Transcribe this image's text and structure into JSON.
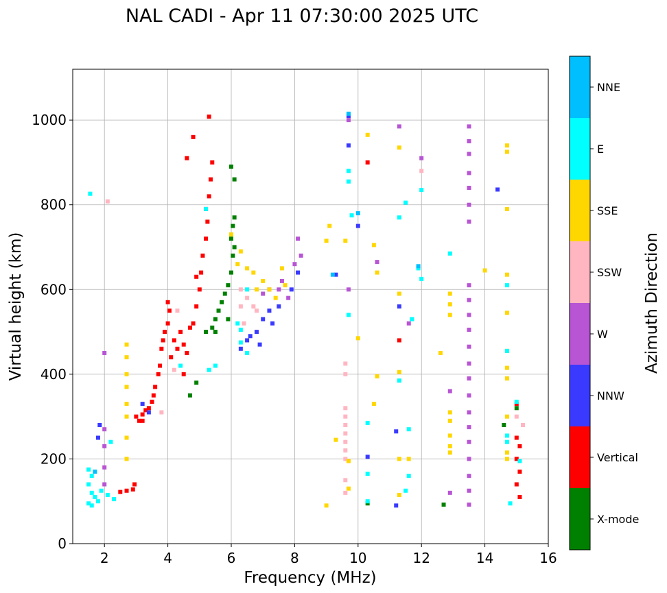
{
  "chart_data": {
    "type": "scatter",
    "title": "NAL CADI - Apr 11 07:30:00 2025 UTC",
    "xlabel": "Frequency (MHz)",
    "ylabel": "Virtual height (km)",
    "xlim": [
      1,
      16
    ],
    "ylim": [
      0,
      1120
    ],
    "xticks": [
      2,
      4,
      6,
      8,
      10,
      12,
      14,
      16
    ],
    "yticks": [
      0,
      200,
      400,
      600,
      800,
      1000
    ],
    "grid": true,
    "colorbar": {
      "label": "Azimuth Direction",
      "categories": [
        {
          "name": "X-mode",
          "color": "#008000"
        },
        {
          "name": "Vertical",
          "color": "#ff0000"
        },
        {
          "name": "NNW",
          "color": "#3a3aff"
        },
        {
          "name": "W",
          "color": "#b855d4"
        },
        {
          "name": "SSW",
          "color": "#ffb6c1"
        },
        {
          "name": "SSE",
          "color": "#ffd700"
        },
        {
          "name": "E",
          "color": "#00ffff"
        },
        {
          "name": "NNE",
          "color": "#00bfff"
        }
      ]
    },
    "clusters": [
      {
        "dir": "Vertical",
        "pts": [
          [
            2.9,
            128
          ],
          [
            2.95,
            140
          ],
          [
            3.0,
            300
          ],
          [
            3.1,
            290
          ],
          [
            3.2,
            305
          ],
          [
            3.3,
            315
          ],
          [
            3.4,
            320
          ],
          [
            3.5,
            335
          ],
          [
            3.55,
            350
          ],
          [
            3.6,
            370
          ],
          [
            3.7,
            400
          ],
          [
            3.75,
            420
          ],
          [
            3.8,
            460
          ],
          [
            3.85,
            480
          ],
          [
            3.9,
            500
          ],
          [
            4.0,
            520
          ],
          [
            4.05,
            550
          ],
          [
            4.0,
            570
          ],
          [
            4.2,
            480
          ],
          [
            4.3,
            460
          ],
          [
            4.4,
            500
          ],
          [
            4.5,
            470
          ],
          [
            4.6,
            450
          ],
          [
            4.7,
            510
          ],
          [
            4.8,
            520
          ],
          [
            4.9,
            560
          ],
          [
            5.0,
            600
          ],
          [
            5.05,
            640
          ],
          [
            5.1,
            680
          ],
          [
            5.2,
            720
          ],
          [
            5.25,
            760
          ],
          [
            5.3,
            820
          ],
          [
            5.35,
            860
          ],
          [
            5.4,
            900
          ],
          [
            4.6,
            910
          ],
          [
            4.8,
            960
          ],
          [
            5.3,
            1008
          ],
          [
            2.5,
            122
          ],
          [
            2.7,
            125
          ],
          [
            3.2,
            290
          ],
          [
            4.1,
            440
          ],
          [
            4.5,
            400
          ],
          [
            4.9,
            630
          ],
          [
            5.2,
            790
          ],
          [
            15.0,
            250
          ],
          [
            15.1,
            230
          ],
          [
            15.0,
            200
          ],
          [
            15.1,
            170
          ],
          [
            15.0,
            140
          ],
          [
            15.1,
            110
          ],
          [
            15.0,
            330
          ],
          [
            11.3,
            480
          ],
          [
            10.3,
            900
          ]
        ]
      },
      {
        "dir": "X-mode",
        "pts": [
          [
            5.2,
            500
          ],
          [
            5.4,
            510
          ],
          [
            5.5,
            530
          ],
          [
            5.6,
            550
          ],
          [
            5.7,
            570
          ],
          [
            5.8,
            590
          ],
          [
            5.9,
            610
          ],
          [
            6.0,
            640
          ],
          [
            6.05,
            680
          ],
          [
            6.1,
            700
          ],
          [
            6.0,
            720
          ],
          [
            6.05,
            750
          ],
          [
            6.1,
            770
          ],
          [
            6.1,
            860
          ],
          [
            6.0,
            890
          ],
          [
            5.5,
            500
          ],
          [
            5.9,
            530
          ],
          [
            4.7,
            350
          ],
          [
            4.9,
            380
          ],
          [
            12.7,
            92
          ],
          [
            15.0,
            320
          ],
          [
            14.6,
            280
          ],
          [
            10.3,
            95
          ]
        ]
      },
      {
        "dir": "NNW",
        "pts": [
          [
            1.8,
            250
          ],
          [
            1.85,
            280
          ],
          [
            3.2,
            330
          ],
          [
            3.4,
            310
          ],
          [
            6.5,
            480
          ],
          [
            6.6,
            490
          ],
          [
            6.8,
            500
          ],
          [
            7.0,
            530
          ],
          [
            7.2,
            550
          ],
          [
            7.5,
            560
          ],
          [
            6.3,
            460
          ],
          [
            6.9,
            470
          ],
          [
            7.3,
            520
          ],
          [
            8.1,
            640
          ],
          [
            7.9,
            600
          ],
          [
            9.3,
            635
          ],
          [
            11.2,
            90
          ],
          [
            11.3,
            560
          ],
          [
            11.2,
            265
          ],
          [
            10.3,
            205
          ],
          [
            14.4,
            836
          ],
          [
            9.7,
            1010
          ],
          [
            9.7,
            940
          ],
          [
            10.0,
            750
          ]
        ]
      },
      {
        "dir": "W",
        "pts": [
          [
            2.0,
            270
          ],
          [
            2.0,
            230
          ],
          [
            2.0,
            180
          ],
          [
            2.0,
            140
          ],
          [
            2.0,
            450
          ],
          [
            7.0,
            590
          ],
          [
            7.2,
            600
          ],
          [
            7.5,
            600
          ],
          [
            7.6,
            620
          ],
          [
            7.8,
            580
          ],
          [
            8.0,
            660
          ],
          [
            8.2,
            680
          ],
          [
            8.1,
            720
          ],
          [
            13.5,
            985
          ],
          [
            13.5,
            950
          ],
          [
            13.5,
            920
          ],
          [
            13.5,
            875
          ],
          [
            13.5,
            840
          ],
          [
            13.5,
            800
          ],
          [
            13.5,
            760
          ],
          [
            13.5,
            610
          ],
          [
            13.5,
            575
          ],
          [
            13.5,
            540
          ],
          [
            13.5,
            505
          ],
          [
            13.5,
            465
          ],
          [
            13.5,
            425
          ],
          [
            13.5,
            390
          ],
          [
            13.5,
            350
          ],
          [
            13.5,
            310
          ],
          [
            13.5,
            275
          ],
          [
            13.5,
            240
          ],
          [
            13.5,
            200
          ],
          [
            13.5,
            160
          ],
          [
            13.5,
            125
          ],
          [
            13.5,
            92
          ],
          [
            12.9,
            360
          ],
          [
            12.9,
            120
          ],
          [
            11.6,
            520
          ],
          [
            11.3,
            985
          ],
          [
            12.0,
            910
          ],
          [
            9.7,
            600
          ],
          [
            10.6,
            665
          ],
          [
            9.7,
            1000
          ]
        ]
      },
      {
        "dir": "SSW",
        "pts": [
          [
            6.3,
            600
          ],
          [
            6.5,
            580
          ],
          [
            6.7,
            560
          ],
          [
            6.8,
            550
          ],
          [
            6.4,
            520
          ],
          [
            6.3,
            560
          ],
          [
            9.6,
            425
          ],
          [
            9.6,
            400
          ],
          [
            9.6,
            320
          ],
          [
            9.6,
            300
          ],
          [
            9.6,
            280
          ],
          [
            9.6,
            260
          ],
          [
            9.6,
            240
          ],
          [
            9.6,
            220
          ],
          [
            9.6,
            200
          ],
          [
            9.6,
            150
          ],
          [
            9.6,
            120
          ],
          [
            4.3,
            550
          ],
          [
            4.2,
            410
          ],
          [
            3.8,
            310
          ],
          [
            2.1,
            808
          ],
          [
            12.0,
            880
          ],
          [
            15.0,
            300
          ],
          [
            15.2,
            280
          ]
        ]
      },
      {
        "dir": "SSE",
        "pts": [
          [
            2.7,
            470
          ],
          [
            2.7,
            440
          ],
          [
            2.7,
            400
          ],
          [
            2.7,
            370
          ],
          [
            2.7,
            330
          ],
          [
            2.7,
            300
          ],
          [
            2.7,
            250
          ],
          [
            2.7,
            200
          ],
          [
            6.5,
            650
          ],
          [
            6.7,
            640
          ],
          [
            7.0,
            620
          ],
          [
            7.2,
            600
          ],
          [
            7.4,
            580
          ],
          [
            7.6,
            650
          ],
          [
            7.7,
            610
          ],
          [
            6.8,
            600
          ],
          [
            6.2,
            660
          ],
          [
            6.3,
            690
          ],
          [
            6.0,
            730
          ],
          [
            9.0,
            715
          ],
          [
            9.1,
            750
          ],
          [
            9.6,
            715
          ],
          [
            9.3,
            245
          ],
          [
            9.0,
            90
          ],
          [
            9.7,
            195
          ],
          [
            9.7,
            130
          ],
          [
            10.0,
            485
          ],
          [
            10.5,
            330
          ],
          [
            10.6,
            395
          ],
          [
            10.6,
            640
          ],
          [
            10.5,
            705
          ],
          [
            10.3,
            965
          ],
          [
            11.3,
            935
          ],
          [
            11.3,
            590
          ],
          [
            11.3,
            405
          ],
          [
            11.3,
            200
          ],
          [
            11.3,
            115
          ],
          [
            12.6,
            450
          ],
          [
            12.9,
            540
          ],
          [
            12.9,
            565
          ],
          [
            12.9,
            590
          ],
          [
            12.9,
            310
          ],
          [
            12.9,
            290
          ],
          [
            12.9,
            255
          ],
          [
            12.9,
            230
          ],
          [
            12.9,
            215
          ],
          [
            14.7,
            940
          ],
          [
            14.7,
            925
          ],
          [
            14.7,
            790
          ],
          [
            14.7,
            635
          ],
          [
            14.7,
            545
          ],
          [
            14.7,
            455
          ],
          [
            14.7,
            415
          ],
          [
            14.7,
            390
          ],
          [
            14.7,
            300
          ],
          [
            14.7,
            215
          ],
          [
            14.7,
            200
          ],
          [
            14.0,
            645
          ],
          [
            11.6,
            200
          ]
        ]
      },
      {
        "dir": "E",
        "pts": [
          [
            1.5,
            175
          ],
          [
            1.6,
            160
          ],
          [
            1.5,
            140
          ],
          [
            1.6,
            120
          ],
          [
            1.7,
            110
          ],
          [
            1.8,
            100
          ],
          [
            1.5,
            95
          ],
          [
            1.6,
            90
          ],
          [
            1.9,
            125
          ],
          [
            2.1,
            115
          ],
          [
            2.3,
            105
          ],
          [
            1.55,
            826
          ],
          [
            6.2,
            520
          ],
          [
            6.3,
            475
          ],
          [
            6.5,
            450
          ],
          [
            6.3,
            505
          ],
          [
            6.5,
            600
          ],
          [
            5.5,
            420
          ],
          [
            5.3,
            410
          ],
          [
            5.2,
            790
          ],
          [
            4.4,
            420
          ],
          [
            9.7,
            880
          ],
          [
            9.7,
            855
          ],
          [
            9.8,
            775
          ],
          [
            9.7,
            540
          ],
          [
            10.3,
            285
          ],
          [
            10.3,
            165
          ],
          [
            10.3,
            100
          ],
          [
            11.3,
            385
          ],
          [
            11.3,
            770
          ],
          [
            11.5,
            125
          ],
          [
            11.6,
            160
          ],
          [
            11.6,
            270
          ],
          [
            11.7,
            530
          ],
          [
            12.0,
            835
          ],
          [
            12.0,
            625
          ],
          [
            11.9,
            650
          ],
          [
            12.9,
            685
          ],
          [
            14.7,
            610
          ],
          [
            14.7,
            455
          ],
          [
            14.7,
            255
          ],
          [
            14.7,
            240
          ],
          [
            15.0,
            335
          ],
          [
            15.1,
            195
          ],
          [
            14.8,
            95
          ],
          [
            11.5,
            805
          ],
          [
            2.2,
            240
          ]
        ]
      },
      {
        "dir": "NNE",
        "pts": [
          [
            9.2,
            635
          ],
          [
            11.9,
            655
          ],
          [
            9.7,
            1015
          ],
          [
            10.0,
            780
          ],
          [
            1.7,
            170
          ]
        ]
      }
    ]
  }
}
